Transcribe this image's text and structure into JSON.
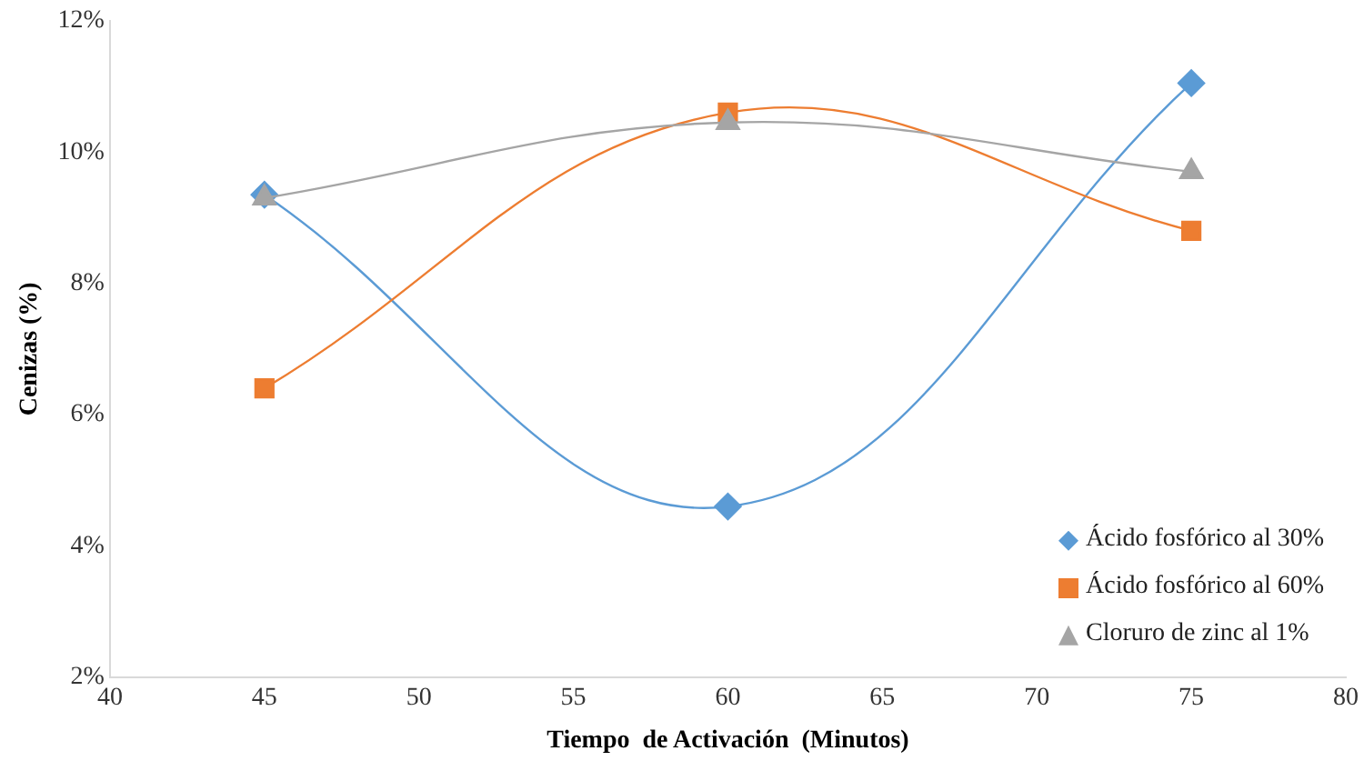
{
  "chart_data": {
    "type": "line",
    "xlabel": "Tiempo  de Activación  (Minutos)",
    "ylabel": "Cenizas (%)",
    "x": [
      45,
      60,
      75
    ],
    "series": [
      {
        "name": "Ácido fosfórico al 30%",
        "color": "#5b9bd5",
        "marker": "diamond",
        "values": [
          9.35,
          4.6,
          11.05
        ]
      },
      {
        "name": "Ácido fosfórico al 60%",
        "color": "#ed7d31",
        "marker": "square",
        "values": [
          6.4,
          10.6,
          8.8
        ]
      },
      {
        "name": "Cloruro de zinc al 1%",
        "color": "#a5a5a5",
        "marker": "triangle",
        "values": [
          9.3,
          10.45,
          9.7
        ]
      }
    ],
    "xlim": [
      40,
      80
    ],
    "xticks": [
      40,
      45,
      50,
      55,
      60,
      65,
      70,
      75,
      80
    ],
    "ylim": [
      2,
      12
    ],
    "yticks": [
      {
        "value": 2,
        "label": "2%"
      },
      {
        "value": 4,
        "label": "4%"
      },
      {
        "value": 6,
        "label": "6%"
      },
      {
        "value": 8,
        "label": "8%"
      },
      {
        "value": 10,
        "label": "10%"
      },
      {
        "value": 12,
        "label": "12%"
      }
    ],
    "grid": false,
    "legend": "bottom right"
  }
}
